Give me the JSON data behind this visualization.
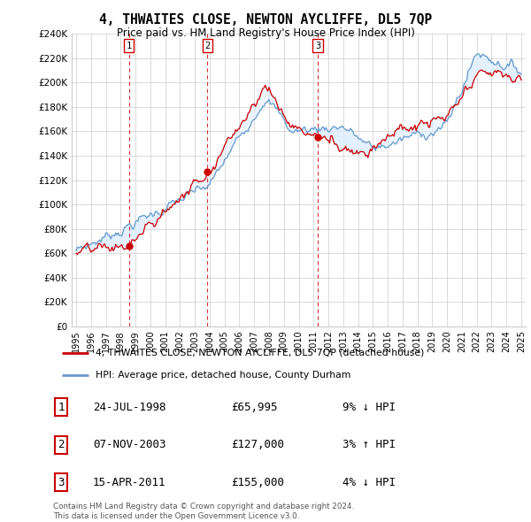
{
  "title": "4, THWAITES CLOSE, NEWTON AYCLIFFE, DL5 7QP",
  "subtitle": "Price paid vs. HM Land Registry's House Price Index (HPI)",
  "legend_line1": "4, THWAITES CLOSE, NEWTON AYCLIFFE, DL5 7QP (detached house)",
  "legend_line2": "HPI: Average price, detached house, County Durham",
  "sales": [
    {
      "label": "1",
      "date_num": 1998.56,
      "price": 65995
    },
    {
      "label": "2",
      "date_num": 2003.85,
      "price": 127000
    },
    {
      "label": "3",
      "date_num": 2011.29,
      "price": 155000
    }
  ],
  "table_rows": [
    {
      "num": "1",
      "date": "24-JUL-1998",
      "price": "£65,995",
      "pct": "9% ↓ HPI"
    },
    {
      "num": "2",
      "date": "07-NOV-2003",
      "price": "£127,000",
      "pct": "3% ↑ HPI"
    },
    {
      "num": "3",
      "date": "15-APR-2011",
      "price": "£155,000",
      "pct": "4% ↓ HPI"
    }
  ],
  "footer1": "Contains HM Land Registry data © Crown copyright and database right 2024.",
  "footer2": "This data is licensed under the Open Government Licence v3.0.",
  "red_color": "#cc0000",
  "blue_color": "#6699cc",
  "fill_color": "#ddeeff",
  "background_color": "#ffffff",
  "grid_color": "#cccccc",
  "ylim": [
    0,
    240000
  ],
  "xlim": [
    1994.7,
    2025.3
  ],
  "yticks": [
    0,
    20000,
    40000,
    60000,
    80000,
    100000,
    120000,
    140000,
    160000,
    180000,
    200000,
    220000,
    240000
  ],
  "xticks": [
    1995,
    1996,
    1997,
    1998,
    1999,
    2000,
    2001,
    2002,
    2003,
    2004,
    2005,
    2006,
    2007,
    2008,
    2009,
    2010,
    2011,
    2012,
    2013,
    2014,
    2015,
    2016,
    2017,
    2018,
    2019,
    2020,
    2021,
    2022,
    2023,
    2024,
    2025
  ]
}
